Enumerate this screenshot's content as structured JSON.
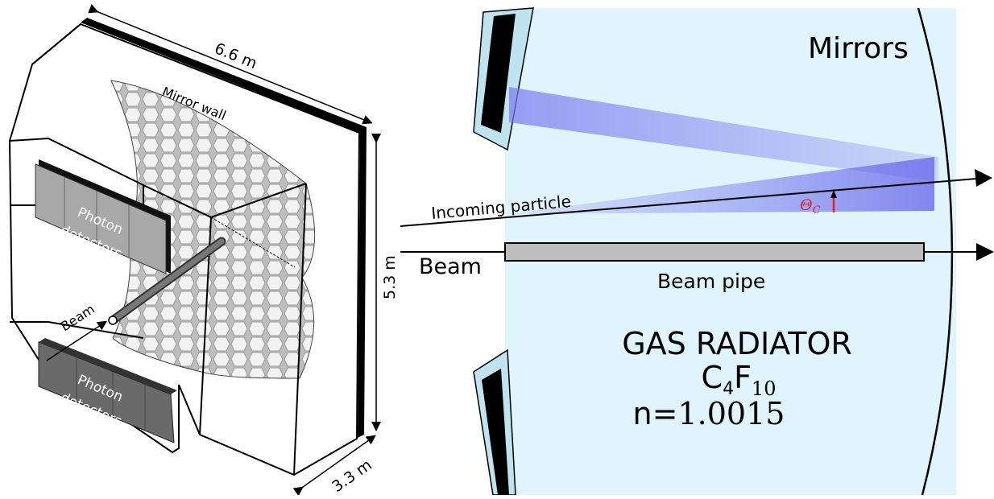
{
  "left_panel": {
    "dim_width": "6.6 m",
    "dim_height": "5.3 m",
    "dim_depth": "3.3 m",
    "mirror_wall_label": "Mirror wall",
    "photon_detectors_top": [
      "Photon",
      "detectors"
    ],
    "photon_detectors_bottom": [
      "Photon",
      "detectors"
    ],
    "beam_label": "Beam"
  },
  "right_panel": {
    "mirrors_label": "Mirrors",
    "incoming_particle_label": "Incoming particle",
    "theta_symbol": "Θ",
    "theta_subscript": "C",
    "beam_label": "Beam",
    "beam_pipe_label": "Beam pipe",
    "radiator_title": "GAS RADIATOR",
    "formula_c": "C",
    "formula_c_sub": "4",
    "formula_f": "F",
    "formula_f_sub": "10",
    "refractive_prefix": "n=",
    "refractive_value": "1.0015"
  },
  "colors": {
    "radiator_bg": "#dff4fc",
    "cone_light": "#7b7bef",
    "theta_red": "#e0242b",
    "pipe_fill": "#bdbdbd",
    "detector_dark": "#555555"
  }
}
